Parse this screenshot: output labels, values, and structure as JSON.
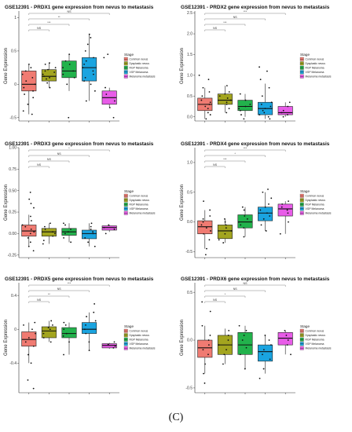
{
  "caption": "(C)",
  "legend": {
    "title": "Stage",
    "entries": [
      "Common nevus",
      "Dysplastic nevus",
      "RGP Melanoma",
      "VGP Melanoma",
      "Melanoma metastasis"
    ],
    "colors": [
      "#f07b72",
      "#a3a51f",
      "#22b24c",
      "#1aa4e0",
      "#e85ce8"
    ]
  },
  "chart_data": [
    {
      "type": "box",
      "title": "GSE12391 - PRDX1 gene expression from nevus to metastasis",
      "ylabel": "Gene Expression",
      "ylim": [
        -0.55,
        1.1
      ],
      "yticks": [
        "-0.5",
        "0",
        "0.5",
        "1"
      ],
      "ytick_values": [
        -0.5,
        0,
        0.5,
        1
      ],
      "series": [
        {
          "name": "Common nevus",
          "q1": -0.1,
          "median": 0.0,
          "q3": 0.2,
          "whisker_low": -0.45,
          "whisker_high": 0.3,
          "points": [
            -0.45,
            -0.4,
            -0.3,
            -0.2,
            -0.15,
            -0.1,
            -0.05,
            0,
            0.05,
            0.1,
            0.15,
            0.2,
            0.25,
            0.3
          ]
        },
        {
          "name": "Dysplastic nevus",
          "q1": 0.05,
          "median": 0.12,
          "q3": 0.22,
          "whisker_low": -0.05,
          "whisker_high": 0.32,
          "points": [
            -0.05,
            0.02,
            0.08,
            0.1,
            0.12,
            0.15,
            0.18,
            0.2,
            0.22,
            0.25,
            0.3,
            0.32
          ]
        },
        {
          "name": "RGP Melanoma",
          "q1": 0.1,
          "median": 0.2,
          "q3": 0.35,
          "whisker_low": -0.1,
          "whisker_high": 0.45,
          "points": [
            -0.5,
            0.0,
            0.1,
            0.15,
            0.2,
            0.25,
            0.3,
            0.35,
            0.45
          ]
        },
        {
          "name": "VGP Melanoma",
          "q1": 0.05,
          "median": 0.25,
          "q3": 0.4,
          "whisker_low": -0.25,
          "whisker_high": 0.75,
          "points": [
            -0.25,
            -0.1,
            0.0,
            0.05,
            0.1,
            0.15,
            0.2,
            0.25,
            0.3,
            0.35,
            0.4,
            0.5,
            0.6,
            0.7,
            0.75
          ]
        },
        {
          "name": "Melanoma metastasis",
          "q1": -0.3,
          "median": -0.2,
          "q3": -0.1,
          "whisker_low": -0.35,
          "whisker_high": -0.05,
          "points": [
            -0.5,
            -0.35,
            -0.25,
            -0.15,
            -0.05,
            0.4,
            0.45
          ]
        }
      ],
      "comparisons": [
        {
          "from": 0,
          "to": 4,
          "label": "NS"
        },
        {
          "from": 0,
          "to": 3,
          "label": "**"
        },
        {
          "from": 0,
          "to": 2,
          "label": "***"
        },
        {
          "from": 0,
          "to": 1,
          "label": "NS"
        }
      ]
    },
    {
      "type": "box",
      "title": "GSE12391 - PRDX2 gene expression from nevus to metastasis",
      "ylabel": "Gene Expression",
      "ylim": [
        -0.1,
        2.55
      ],
      "yticks": [
        "0.0",
        "0.5",
        "1.0",
        "1.5",
        "2.0",
        "2.5"
      ],
      "ytick_values": [
        0,
        0.5,
        1.0,
        1.5,
        2.0,
        2.5
      ],
      "series": [
        {
          "name": "Common nevus",
          "q1": 0.15,
          "median": 0.3,
          "q3": 0.45,
          "whisker_low": -0.05,
          "whisker_high": 0.7,
          "points": [
            -0.05,
            0.05,
            0.1,
            0.2,
            0.25,
            0.3,
            0.35,
            0.4,
            0.5,
            0.6,
            0.7,
            0.9,
            1.0
          ]
        },
        {
          "name": "Dysplastic nevus",
          "q1": 0.3,
          "median": 0.4,
          "q3": 0.55,
          "whisker_low": 0.1,
          "whisker_high": 0.75,
          "points": [
            0.1,
            0.2,
            0.3,
            0.35,
            0.4,
            0.45,
            0.5,
            0.55,
            0.6,
            0.75
          ]
        },
        {
          "name": "RGP Melanoma",
          "q1": 0.15,
          "median": 0.25,
          "q3": 0.4,
          "whisker_low": 0.0,
          "whisker_high": 0.55,
          "points": [
            -0.05,
            0.05,
            0.15,
            0.2,
            0.25,
            0.3,
            0.4,
            0.55
          ]
        },
        {
          "name": "VGP Melanoma",
          "q1": 0.05,
          "median": 0.2,
          "q3": 0.35,
          "whisker_low": -0.05,
          "whisker_high": 0.8,
          "points": [
            -0.05,
            0.0,
            0.05,
            0.1,
            0.15,
            0.2,
            0.25,
            0.3,
            0.35,
            0.5,
            0.7,
            0.9,
            1.1,
            1.2
          ]
        },
        {
          "name": "Melanoma metastasis",
          "q1": 0.05,
          "median": 0.1,
          "q3": 0.25,
          "whisker_low": 0.0,
          "whisker_high": 0.35,
          "points": [
            0.0,
            0.05,
            0.1,
            0.15,
            0.25,
            0.35
          ]
        }
      ],
      "comparisons": [
        {
          "from": 0,
          "to": 4,
          "label": "***"
        },
        {
          "from": 0,
          "to": 3,
          "label": "NS"
        },
        {
          "from": 0,
          "to": 2,
          "label": "***"
        },
        {
          "from": 0,
          "to": 1,
          "label": "NS"
        }
      ]
    },
    {
      "type": "box",
      "title": "GSE12391 - PRDX3 gene expression from nevus to metastasis",
      "ylabel": "Gene Expression",
      "ylim": [
        -0.28,
        1.0
      ],
      "yticks": [
        "-0.25",
        "0.00",
        "0.25",
        "0.50",
        "0.75",
        "1.00"
      ],
      "ytick_values": [
        -0.25,
        0,
        0.25,
        0.5,
        0.75,
        1.0
      ],
      "series": [
        {
          "name": "Common nevus",
          "q1": -0.03,
          "median": 0.03,
          "q3": 0.1,
          "whisker_low": -0.15,
          "whisker_high": 0.22,
          "points": [
            -0.2,
            -0.15,
            -0.1,
            -0.05,
            0.0,
            0.02,
            0.05,
            0.08,
            0.1,
            0.15,
            0.2,
            0.3,
            0.35,
            0.4,
            0.48
          ]
        },
        {
          "name": "Dysplastic nevus",
          "q1": -0.03,
          "median": 0.02,
          "q3": 0.06,
          "whisker_low": -0.12,
          "whisker_high": 0.12,
          "points": [
            -0.12,
            -0.08,
            -0.03,
            0.0,
            0.02,
            0.05,
            0.08,
            0.12
          ]
        },
        {
          "name": "RGP Melanoma",
          "q1": -0.02,
          "median": 0.02,
          "q3": 0.06,
          "whisker_low": -0.1,
          "whisker_high": 0.12,
          "points": [
            -0.1,
            -0.05,
            0.0,
            0.02,
            0.05,
            0.1,
            0.12
          ]
        },
        {
          "name": "VGP Melanoma",
          "q1": -0.06,
          "median": 0.0,
          "q3": 0.04,
          "whisker_low": -0.15,
          "whisker_high": 0.12,
          "points": [
            -0.15,
            -0.1,
            -0.05,
            0.0,
            0.02,
            0.05,
            0.08,
            0.12
          ]
        },
        {
          "name": "Melanoma metastasis",
          "q1": 0.04,
          "median": 0.07,
          "q3": 0.09,
          "whisker_low": 0.02,
          "whisker_high": 0.1,
          "points": [
            0.0,
            0.05,
            0.07,
            0.1
          ]
        }
      ],
      "comparisons": [
        {
          "from": 0,
          "to": 4,
          "label": "*"
        },
        {
          "from": 0,
          "to": 3,
          "label": "NS"
        },
        {
          "from": 0,
          "to": 2,
          "label": "NS"
        },
        {
          "from": 0,
          "to": 1,
          "label": "NS"
        }
      ]
    },
    {
      "type": "box",
      "title": "GSE12391 - PRDX4 gene expression from nevus to metastasis",
      "ylabel": "Gene Expression",
      "ylim": [
        -0.6,
        1.25
      ],
      "yticks": [
        "-0.5",
        "0.0",
        "0.5",
        "1.0"
      ],
      "ytick_values": [
        -0.5,
        0,
        0.5,
        1.0
      ],
      "series": [
        {
          "name": "Common nevus",
          "q1": -0.2,
          "median": -0.08,
          "q3": 0.02,
          "whisker_low": -0.45,
          "whisker_high": 0.2,
          "points": [
            -0.55,
            -0.45,
            -0.3,
            -0.2,
            -0.15,
            -0.1,
            -0.05,
            0.0,
            0.05,
            0.1,
            0.2,
            0.35
          ]
        },
        {
          "name": "Dysplastic nevus",
          "q1": -0.28,
          "median": -0.15,
          "q3": -0.05,
          "whisker_low": -0.35,
          "whisker_high": 0.05,
          "points": [
            -0.35,
            -0.3,
            -0.2,
            -0.15,
            -0.1,
            -0.05,
            0.0,
            0.05
          ]
        },
        {
          "name": "RGP Melanoma",
          "q1": -0.1,
          "median": 0.0,
          "q3": 0.12,
          "whisker_low": -0.25,
          "whisker_high": 0.25,
          "points": [
            -0.25,
            -0.1,
            -0.05,
            0.0,
            0.05,
            0.1,
            0.2,
            0.25
          ]
        },
        {
          "name": "VGP Melanoma",
          "q1": 0.02,
          "median": 0.15,
          "q3": 0.25,
          "whisker_low": -0.15,
          "whisker_high": 0.5,
          "points": [
            -0.15,
            -0.05,
            0.05,
            0.1,
            0.15,
            0.2,
            0.25,
            0.3,
            0.4,
            0.5,
            0.55
          ]
        },
        {
          "name": "Melanoma metastasis",
          "q1": 0.1,
          "median": 0.22,
          "q3": 0.3,
          "whisker_low": -0.2,
          "whisker_high": 0.35,
          "points": [
            -0.2,
            0.0,
            0.15,
            0.2,
            0.25,
            0.3,
            0.35
          ]
        }
      ],
      "comparisons": [
        {
          "from": 0,
          "to": 4,
          "label": "***"
        },
        {
          "from": 0,
          "to": 3,
          "label": "*"
        },
        {
          "from": 0,
          "to": 2,
          "label": "***"
        },
        {
          "from": 0,
          "to": 1,
          "label": "NS"
        }
      ]
    },
    {
      "type": "box",
      "title": "GSE12391 - PRDX5 gene expression from nevus to metastasis",
      "ylabel": "Gene Expression",
      "ylim": [
        -0.75,
        0.55
      ],
      "yticks": [
        "-0.4",
        "0",
        "0.4"
      ],
      "ytick_values": [
        -0.4,
        0,
        0.4
      ],
      "series": [
        {
          "name": "Common nevus",
          "q1": -0.2,
          "median": -0.12,
          "q3": -0.03,
          "whisker_low": -0.4,
          "whisker_high": 0.08,
          "points": [
            -0.7,
            -0.6,
            -0.4,
            -0.3,
            -0.2,
            -0.15,
            -0.1,
            -0.05,
            0.0,
            0.05,
            0.08
          ]
        },
        {
          "name": "Dysplastic nevus",
          "q1": -0.1,
          "median": -0.02,
          "q3": 0.03,
          "whisker_low": -0.15,
          "whisker_high": 0.1,
          "points": [
            -0.15,
            -0.1,
            -0.05,
            0.0,
            0.02,
            0.05,
            0.1
          ]
        },
        {
          "name": "RGP Melanoma",
          "q1": -0.1,
          "median": -0.05,
          "q3": 0.02,
          "whisker_low": -0.3,
          "whisker_high": 0.08,
          "points": [
            -0.3,
            -0.15,
            -0.08,
            -0.05,
            0.0,
            0.05,
            0.08
          ]
        },
        {
          "name": "VGP Melanoma",
          "q1": -0.05,
          "median": 0.0,
          "q3": 0.08,
          "whisker_low": -0.25,
          "whisker_high": 0.2,
          "points": [
            -0.25,
            -0.15,
            -0.05,
            0.0,
            0.05,
            0.1,
            0.15,
            0.2,
            0.3
          ]
        },
        {
          "name": "Melanoma metastasis",
          "q1": -0.22,
          "median": -0.19,
          "q3": -0.17,
          "whisker_low": -0.23,
          "whisker_high": -0.16,
          "points": [
            -0.22,
            -0.2,
            -0.18,
            -0.15
          ]
        }
      ],
      "comparisons": [
        {
          "from": 0,
          "to": 4,
          "label": "***"
        },
        {
          "from": 0,
          "to": 3,
          "label": "NS"
        },
        {
          "from": 0,
          "to": 2,
          "label": "**"
        },
        {
          "from": 0,
          "to": 1,
          "label": "NS"
        }
      ]
    },
    {
      "type": "box",
      "title": "GSE12391 - PRDX6 gene expression from nevus to metastasis",
      "ylabel": "Gene Expression",
      "ylim": [
        -0.55,
        0.6
      ],
      "yticks": [
        "-0.5",
        "0.0",
        "0.5"
      ],
      "ytick_values": [
        -0.5,
        0,
        0.5
      ],
      "series": [
        {
          "name": "Common nevus",
          "q1": -0.18,
          "median": -0.08,
          "q3": 0.0,
          "whisker_low": -0.35,
          "whisker_high": 0.15,
          "points": [
            -0.45,
            -0.35,
            -0.25,
            -0.15,
            -0.1,
            -0.05,
            0.0,
            0.05,
            0.15,
            0.3,
            0.4
          ]
        },
        {
          "name": "Dysplastic nevus",
          "q1": -0.15,
          "median": -0.05,
          "q3": 0.05,
          "whisker_low": -0.25,
          "whisker_high": 0.12,
          "points": [
            -0.25,
            -0.15,
            -0.1,
            -0.05,
            0.0,
            0.05,
            0.1
          ]
        },
        {
          "name": "RGP Melanoma",
          "q1": -0.15,
          "median": -0.05,
          "q3": 0.08,
          "whisker_low": -0.3,
          "whisker_high": 0.15,
          "points": [
            -0.3,
            -0.15,
            -0.08,
            0.0,
            0.05,
            0.1,
            0.15
          ]
        },
        {
          "name": "VGP Melanoma",
          "q1": -0.22,
          "median": -0.12,
          "q3": -0.05,
          "whisker_low": -0.35,
          "whisker_high": 0.05,
          "points": [
            -0.4,
            -0.3,
            -0.2,
            -0.15,
            -0.1,
            -0.05,
            0.0,
            0.05
          ]
        },
        {
          "name": "Melanoma metastasis",
          "q1": -0.05,
          "median": 0.02,
          "q3": 0.08,
          "whisker_low": -0.15,
          "whisker_high": 0.1,
          "points": [
            -0.15,
            -0.05,
            0.0,
            0.05,
            0.1
          ]
        }
      ],
      "comparisons": [
        {
          "from": 0,
          "to": 4,
          "label": "NS"
        },
        {
          "from": 0,
          "to": 3,
          "label": "NS"
        },
        {
          "from": 0,
          "to": 2,
          "label": "*"
        },
        {
          "from": 0,
          "to": 1,
          "label": "NS"
        }
      ]
    }
  ]
}
